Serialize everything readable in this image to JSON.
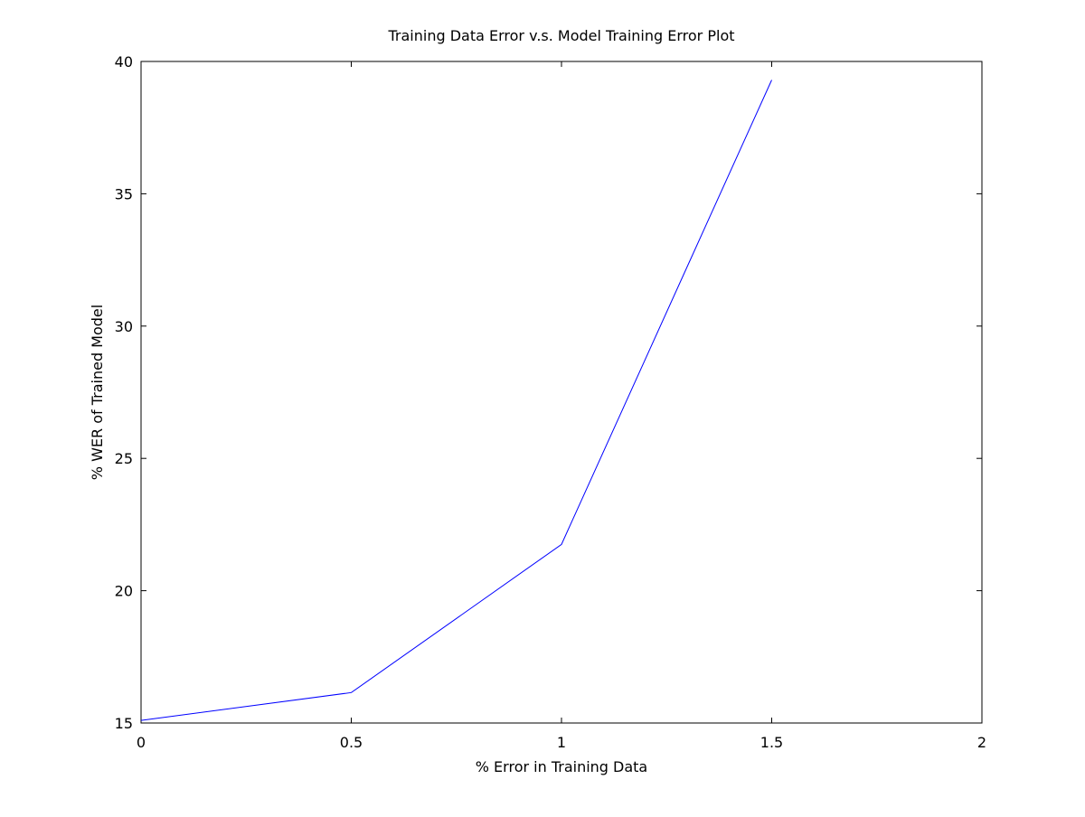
{
  "chart_data": {
    "type": "line",
    "title": "Training Data Error v.s. Model Training Error Plot",
    "xlabel": "% Error in Training Data",
    "ylabel": "% WER of Trained Model",
    "xlim": [
      0,
      2
    ],
    "ylim": [
      15,
      40
    ],
    "xticks": [
      "0",
      "0.5",
      "1",
      "1.5",
      "2"
    ],
    "yticks": [
      "15",
      "20",
      "25",
      "30",
      "35",
      "40"
    ],
    "grid": false,
    "legend": "none",
    "series": [
      {
        "color": "#0000ff",
        "x": [
          0,
          0.5,
          1,
          1.5
        ],
        "y": [
          15.1,
          16.15,
          21.75,
          39.3
        ]
      }
    ]
  }
}
